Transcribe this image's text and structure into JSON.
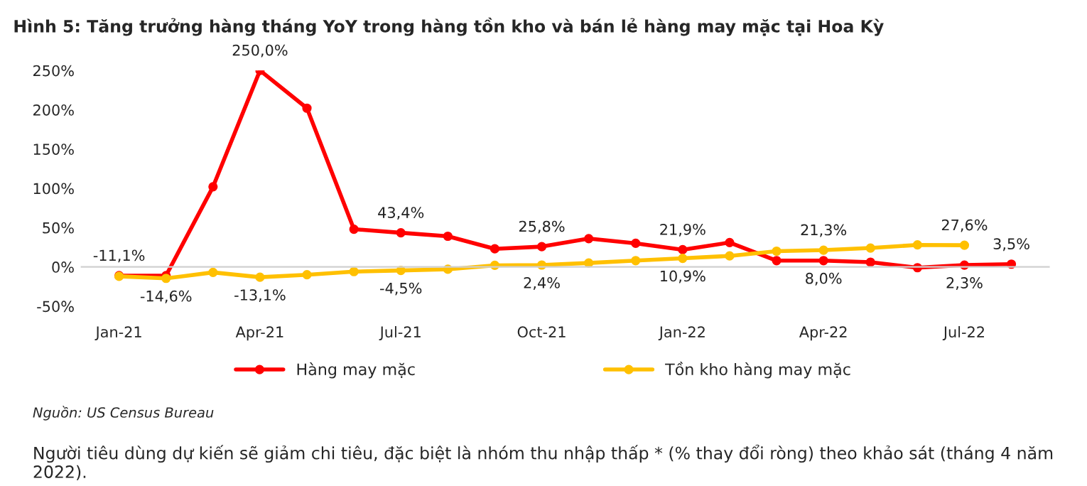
{
  "chart_data": {
    "type": "line",
    "title": "Hình 5: Tăng trưởng hàng tháng YoY trong hàng tồn kho và bán lẻ hàng may mặc tại Hoa Kỳ",
    "categories": [
      "Jan-21",
      null,
      null,
      "Apr-21",
      null,
      null,
      "Jul-21",
      null,
      null,
      "Oct-21",
      null,
      null,
      "Jan-22",
      null,
      null,
      "Apr-22",
      null,
      null,
      "Jul-22",
      null
    ],
    "series": [
      {
        "name": "Hàng may mặc",
        "color": "#ff0000",
        "values": [
          -11.1,
          -11,
          102,
          250,
          202,
          48,
          43.4,
          39,
          23,
          25.8,
          36,
          30,
          21.9,
          31,
          8,
          8.0,
          6,
          -1,
          2.3,
          3.5
        ],
        "value_labels": [
          "-11,1%",
          null,
          null,
          "250,0%",
          null,
          null,
          "43,4%",
          null,
          null,
          "25,8%",
          null,
          null,
          "21,9%",
          null,
          null,
          "8,0%",
          null,
          null,
          "2,3%",
          "3,5%"
        ]
      },
      {
        "name": "Tồn kho hàng may mặc",
        "color": "#ffc000",
        "values": [
          -12,
          -14.6,
          -7,
          -13.1,
          -10,
          -6,
          -4.5,
          -3,
          2,
          2.4,
          5,
          8,
          10.9,
          14,
          20,
          21.3,
          24,
          28,
          27.6,
          null
        ],
        "value_labels": [
          null,
          "-14,6%",
          null,
          "-13,1%",
          null,
          null,
          "-4,5%",
          null,
          null,
          "2,4%",
          null,
          null,
          "10,9%",
          null,
          null,
          "21,3%",
          null,
          null,
          "27,6%",
          null
        ]
      }
    ],
    "ylim": [
      -50,
      250
    ],
    "yticks": [
      {
        "value": -50,
        "label": "-50%"
      },
      {
        "value": 0,
        "label": "0%"
      },
      {
        "value": 50,
        "label": "50%"
      },
      {
        "value": 100,
        "label": "100%"
      },
      {
        "value": 150,
        "label": "150%"
      },
      {
        "value": 200,
        "label": "200%"
      },
      {
        "value": 250,
        "label": "250%"
      }
    ],
    "legend": "bottom",
    "marker": "circle",
    "line_style": "solid",
    "annotations": [
      "Nguồn: US Census Bureau",
      "Người tiêu dùng dự kiến sẽ giảm chi tiêu, đặc biệt là nhóm thu nhập thấp * (% thay đổi ròng) theo khảo sát (tháng 4 năm 2022)."
    ]
  }
}
